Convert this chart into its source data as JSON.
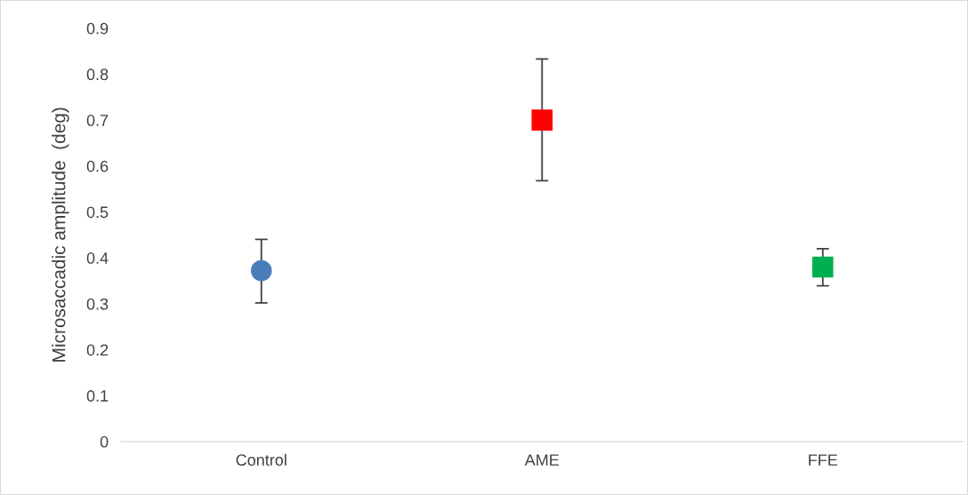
{
  "chart_data": {
    "type": "scatter",
    "ylabel": "Microsaccadic amplitude  (deg)",
    "categories": [
      "Control",
      "AME",
      "FFE"
    ],
    "ylim": [
      0,
      0.9
    ],
    "yticks": [
      0,
      0.1,
      0.2,
      0.3,
      0.4,
      0.5,
      0.6,
      0.7,
      0.8,
      0.9
    ],
    "grid": false,
    "series": [
      {
        "color": "#4a7ebb",
        "marker": "circle",
        "values": [
          0.372,
          null,
          null
        ],
        "errors": [
          [
            0.302,
            0.44
          ],
          null,
          null
        ]
      },
      {
        "color": "#ff0000",
        "marker": "square",
        "values": [
          null,
          0.7,
          null
        ],
        "errors": [
          null,
          [
            0.568,
            0.833
          ],
          null
        ]
      },
      {
        "color": "#00b050",
        "marker": "square",
        "values": [
          null,
          null,
          0.38
        ],
        "errors": [
          null,
          null,
          [
            0.339,
            0.42
          ]
        ]
      }
    ]
  }
}
